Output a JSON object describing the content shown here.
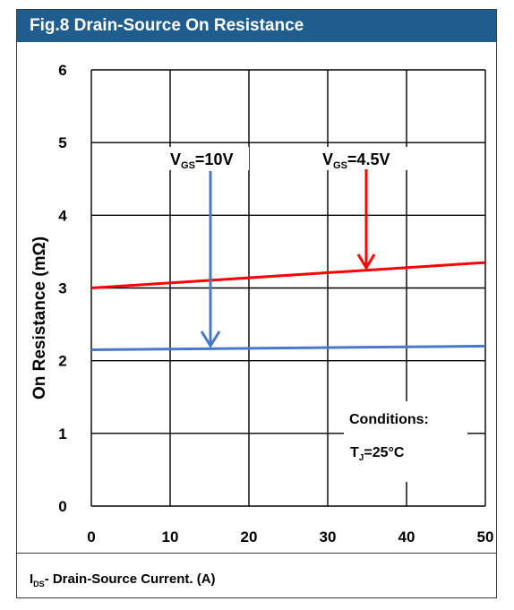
{
  "figure": {
    "title": "Fig.8 Drain-Source On Resistance",
    "xlabel_main": "I",
    "xlabel_sub": "DS",
    "xlabel_rest": "- Drain-Source Current. (A)"
  },
  "chart_data": {
    "type": "line",
    "xlabel": "I_DS - Drain-Source Current. (A)",
    "ylabel": "On Resistance (mΩ)",
    "xlim": [
      0,
      50
    ],
    "ylim": [
      0,
      6
    ],
    "x_ticks": [
      0,
      10,
      20,
      30,
      40,
      50
    ],
    "y_ticks": [
      0,
      1,
      2,
      3,
      4,
      5,
      6
    ],
    "grid": true,
    "series": [
      {
        "name": "VGS=4.5V",
        "color": "#ff0000",
        "x": [
          0,
          50
        ],
        "y": [
          3.0,
          3.35
        ]
      },
      {
        "name": "VGS=10V",
        "color": "#4a78c8",
        "x": [
          0,
          50
        ],
        "y": [
          2.15,
          2.2
        ]
      }
    ],
    "annotations": {
      "vgs10": {
        "main": "V",
        "sub": "GS",
        "rest": "=10V"
      },
      "vgs45": {
        "main": "V",
        "sub": "GS",
        "rest": "=4.5V"
      },
      "conditions_title": "Conditions:",
      "conditions_main": "T",
      "conditions_sub": "J",
      "conditions_rest": "=25°C"
    }
  }
}
